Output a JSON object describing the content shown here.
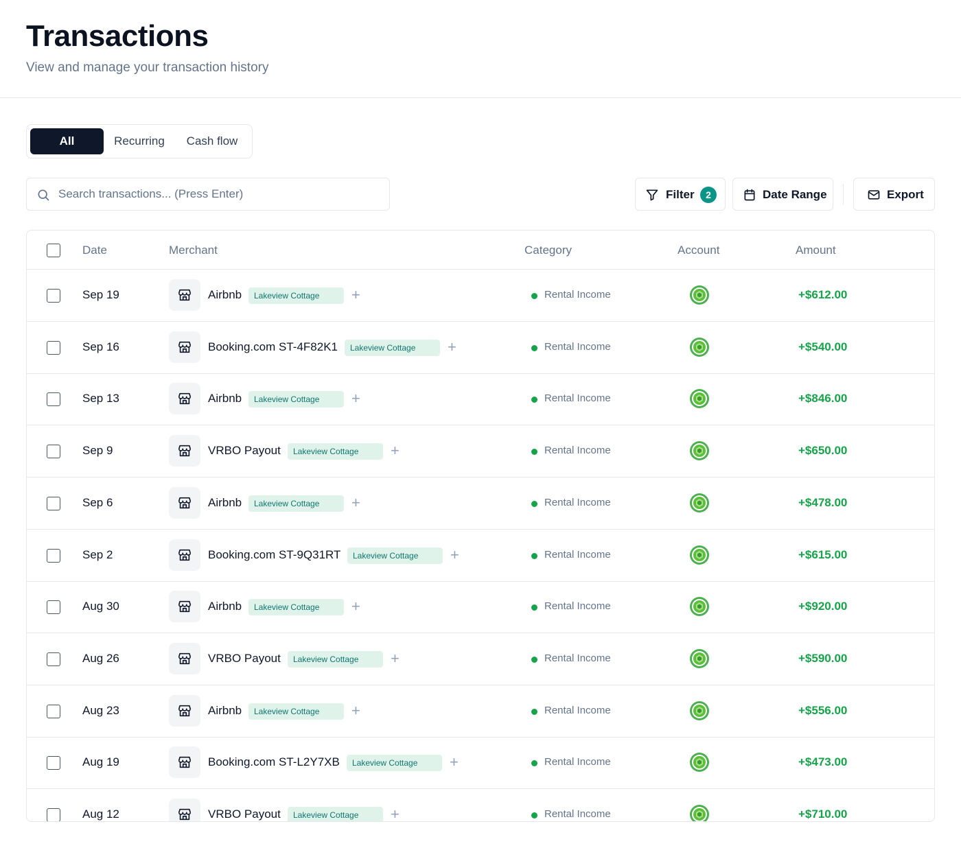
{
  "page": {
    "title": "Transactions",
    "subtitle": "View and manage your transaction history"
  },
  "tabs": [
    {
      "label": "All",
      "active": true
    },
    {
      "label": "Recurring",
      "active": false
    },
    {
      "label": "Cash flow",
      "active": false
    }
  ],
  "search": {
    "placeholder": "Search transactions... (Press Enter)",
    "value": ""
  },
  "toolbar": {
    "filter_label": "Filter",
    "filter_count": "2",
    "date_range_label": "Date Range",
    "export_label": "Export"
  },
  "table": {
    "headers": {
      "date": "Date",
      "merchant": "Merchant",
      "category": "Category",
      "account": "Account",
      "amount": "Amount"
    },
    "rows": [
      {
        "date": "Sep 19",
        "merchant": "Airbnb",
        "tag": "Lakeview Cottage",
        "category": "Rental Income",
        "amount": "+$612.00"
      },
      {
        "date": "Sep 16",
        "merchant": "Booking.com ST-4F82K1",
        "tag": "Lakeview Cottage",
        "category": "Rental Income",
        "amount": "+$540.00"
      },
      {
        "date": "Sep 13",
        "merchant": "Airbnb",
        "tag": "Lakeview Cottage",
        "category": "Rental Income",
        "amount": "+$846.00"
      },
      {
        "date": "Sep 9",
        "merchant": "VRBO Payout",
        "tag": "Lakeview Cottage",
        "category": "Rental Income",
        "amount": "+$650.00"
      },
      {
        "date": "Sep 6",
        "merchant": "Airbnb",
        "tag": "Lakeview Cottage",
        "category": "Rental Income",
        "amount": "+$478.00"
      },
      {
        "date": "Sep 2",
        "merchant": "Booking.com ST-9Q31RT",
        "tag": "Lakeview Cottage",
        "category": "Rental Income",
        "amount": "+$615.00"
      },
      {
        "date": "Aug 30",
        "merchant": "Airbnb",
        "tag": "Lakeview Cottage",
        "category": "Rental Income",
        "amount": "+$920.00"
      },
      {
        "date": "Aug 26",
        "merchant": "VRBO Payout",
        "tag": "Lakeview Cottage",
        "category": "Rental Income",
        "amount": "+$590.00"
      },
      {
        "date": "Aug 23",
        "merchant": "Airbnb",
        "tag": "Lakeview Cottage",
        "category": "Rental Income",
        "amount": "+$556.00"
      },
      {
        "date": "Aug 19",
        "merchant": "Booking.com ST-L2Y7XB",
        "tag": "Lakeview Cottage",
        "category": "Rental Income",
        "amount": "+$473.00"
      },
      {
        "date": "Aug 12",
        "merchant": "VRBO Payout",
        "tag": "Lakeview Cottage",
        "category": "Rental Income",
        "amount": "+$710.00"
      }
    ]
  },
  "colors": {
    "accent_dark": "#0f172a",
    "income_green": "#16a34a",
    "tag_bg": "#dff3ea",
    "tag_text": "#0f766e",
    "badge_teal": "#0d9488"
  },
  "icons": {
    "search": "search-icon",
    "filter": "funnel-icon",
    "date_range": "calendar-icon",
    "export": "mail-icon",
    "merchant": "storefront-icon",
    "account": "account-logo-icon",
    "add_tag": "plus-icon"
  }
}
